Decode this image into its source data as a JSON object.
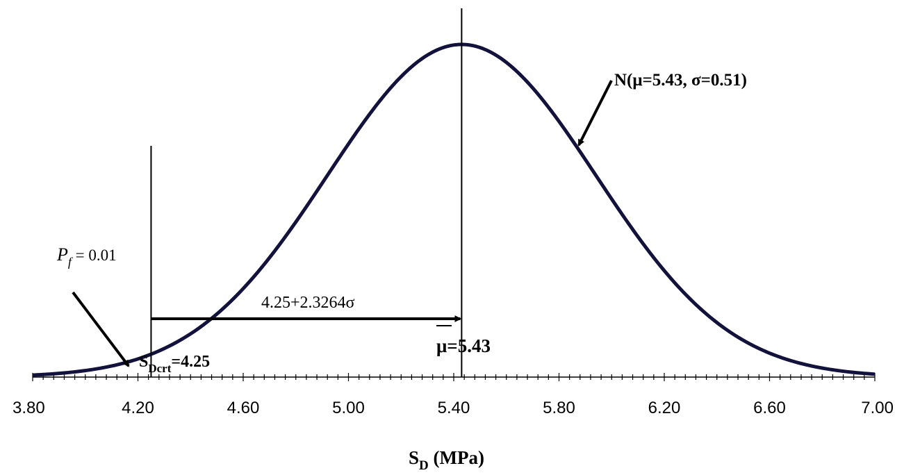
{
  "chart_data": {
    "type": "line",
    "curve": {
      "distribution": "normal",
      "mu": 5.43,
      "sigma": 0.51
    },
    "xlim": [
      3.8,
      7.0
    ],
    "x_ticks": [
      "3.80",
      "4.20",
      "4.60",
      "5.00",
      "5.40",
      "5.80",
      "6.20",
      "6.60",
      "7.00"
    ],
    "xlabel_main": "S",
    "xlabel_sub": "D",
    "xlabel_unit": " (MPa)",
    "annotations": {
      "dist_label": "N(μ=5.43, σ=0.51)",
      "pf_symbol": "P",
      "pf_sub": "f",
      "pf_value": " = 0.01",
      "arrow_label": "4.25+2.3264σ",
      "crit_main": "S",
      "crit_sub": "Dcrt",
      "crit_value": "=4.25",
      "mean_label": "μ=5.43"
    },
    "critical_x": 4.25,
    "mean_x": 5.43
  }
}
